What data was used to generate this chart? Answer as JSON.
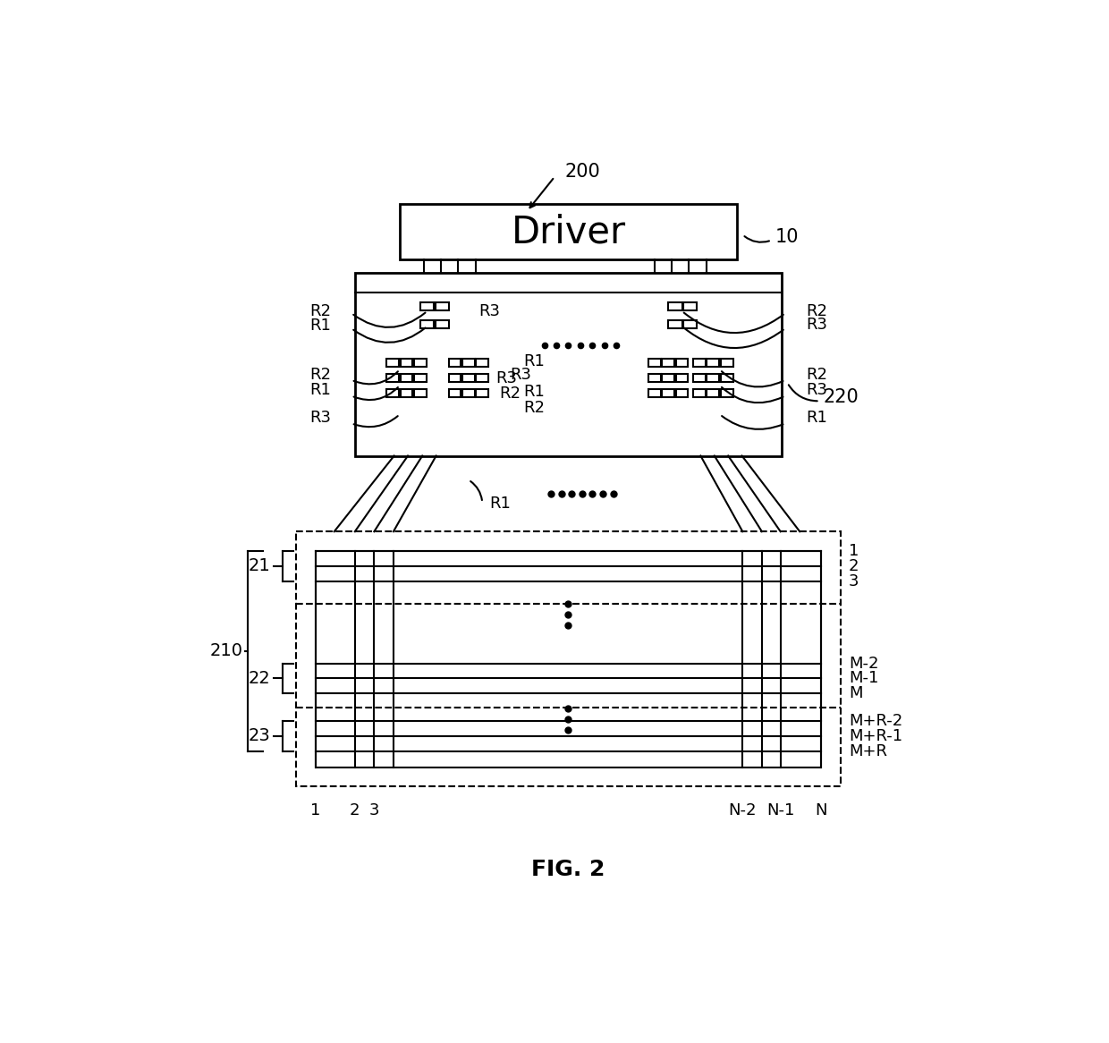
{
  "bg_color": "#ffffff",
  "line_color": "#000000",
  "title": "FIG. 2",
  "driver_label": "Driver",
  "label_200": "200",
  "label_10": "10",
  "label_220": "220",
  "label_210": "210",
  "label_21": "21",
  "label_22": "22",
  "label_23": "23",
  "row_labels": [
    "1",
    "2",
    "3",
    "M-2",
    "M-1",
    "M",
    "M+R-2",
    "M+R-1",
    "M+R"
  ],
  "col_labels": [
    "1",
    "2",
    "3",
    "N-2",
    "N-1",
    "N"
  ],
  "res_labels_left": [
    "R2",
    "R1",
    "R2",
    "R1",
    "R3"
  ],
  "res_labels_right": [
    "R2",
    "R3",
    "R2",
    "R3",
    "R1"
  ]
}
